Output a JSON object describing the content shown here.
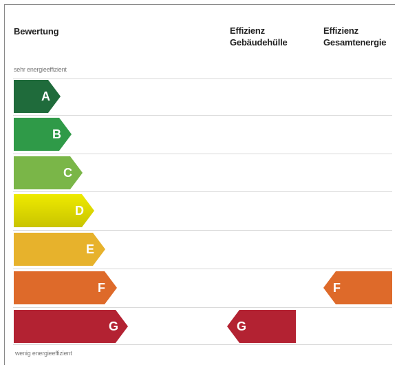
{
  "header": {
    "rating": "Bewertung",
    "envelope_line1": "Effizienz",
    "envelope_line2": "Gebäudehülle",
    "total_line1": "Effizienz",
    "total_line2": "Gesamtenergie"
  },
  "scale": {
    "top_note": "sehr energieeffizient",
    "bottom_note": "wenig energieeffizient"
  },
  "classes": [
    {
      "label": "A",
      "color": "#1f6b3b"
    },
    {
      "label": "B",
      "color": "#2f9a48"
    },
    {
      "label": "C",
      "color": "#7ab648"
    },
    {
      "label": "D",
      "color": "#e6e300"
    },
    {
      "label": "E",
      "color": "#e7b22c"
    },
    {
      "label": "F",
      "color": "#de6a2a"
    },
    {
      "label": "G",
      "color": "#b32232"
    }
  ],
  "ratings": {
    "envelope": {
      "label": "G",
      "color": "#b32232"
    },
    "total": {
      "label": "F",
      "color": "#de6a2a"
    }
  }
}
